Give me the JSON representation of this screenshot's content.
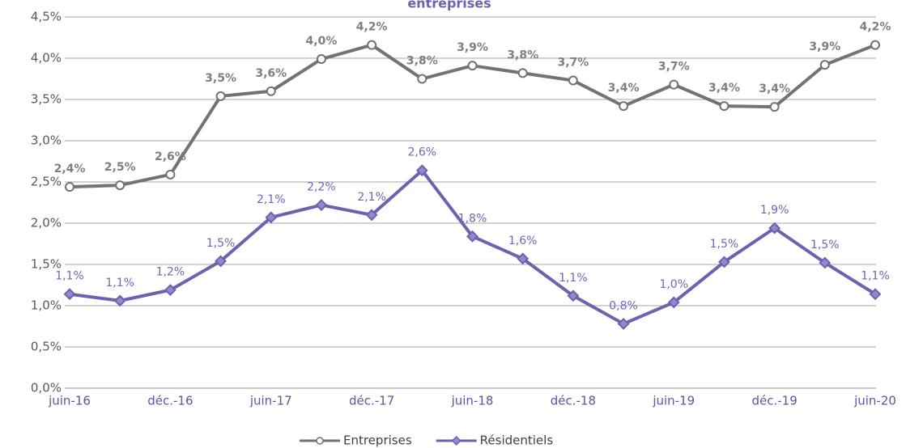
{
  "chart_data": {
    "type": "line",
    "title": "entreprises",
    "categories": [
      "juin-16",
      null,
      "déc.-16",
      null,
      "juin-17",
      null,
      "déc.-17",
      null,
      "juin-18",
      null,
      "déc.-18",
      null,
      "juin-19",
      null,
      "déc.-19",
      null,
      "juin-20"
    ],
    "series": [
      {
        "name": "Entreprises",
        "color": "#737373",
        "marker": "circle",
        "marker_fill": "#ffffff",
        "label_color": "#7f7f7f",
        "values": [
          2.44,
          2.46,
          2.59,
          3.54,
          3.6,
          3.99,
          4.16,
          3.75,
          3.91,
          3.82,
          3.73,
          3.42,
          3.68,
          3.42,
          3.41,
          3.92,
          4.16
        ],
        "value_labels": [
          "2,4%",
          "2,5%",
          "2,6%",
          "3,5%",
          "3,6%",
          "4,0%",
          "4,2%",
          "3,8%",
          "3,9%",
          "3,8%",
          "3,7%",
          "3,4%",
          "3,7%",
          "3,4%",
          "3,4%",
          "3,9%",
          "4,2%"
        ]
      },
      {
        "name": "Résidentiels",
        "color": "#6b62b0",
        "marker": "diamond",
        "marker_fill": "#9089cc",
        "label_color": "#6f66b8",
        "values": [
          1.14,
          1.06,
          1.19,
          1.54,
          2.07,
          2.22,
          2.1,
          2.64,
          1.84,
          1.57,
          1.12,
          0.78,
          1.04,
          1.53,
          1.94,
          1.52,
          1.14
        ],
        "value_labels": [
          "1,1%",
          "1,1%",
          "1,2%",
          "1,5%",
          "2,1%",
          "2,2%",
          "2,1%",
          "2,6%",
          "1,8%",
          "1,6%",
          "1,1%",
          "0,8%",
          "1,0%",
          "1,5%",
          "1,9%",
          "1,5%",
          "1,1%"
        ]
      }
    ],
    "ylim": [
      0,
      4.5
    ],
    "yticks": [
      {
        "value": 0,
        "label": "0,0%"
      },
      {
        "value": 0.5,
        "label": "0,5%"
      },
      {
        "value": 1,
        "label": "1,0%"
      },
      {
        "value": 1.5,
        "label": "1,5%"
      },
      {
        "value": 2,
        "label": "2,0%"
      },
      {
        "value": 2.5,
        "label": "2,5%"
      },
      {
        "value": 3,
        "label": "3,0%"
      },
      {
        "value": 3.5,
        "label": "3,5%"
      },
      {
        "value": 4,
        "label": "4,0%"
      },
      {
        "value": 4.5,
        "label": "4,5%"
      }
    ],
    "grid": true,
    "legend": "bottom"
  }
}
